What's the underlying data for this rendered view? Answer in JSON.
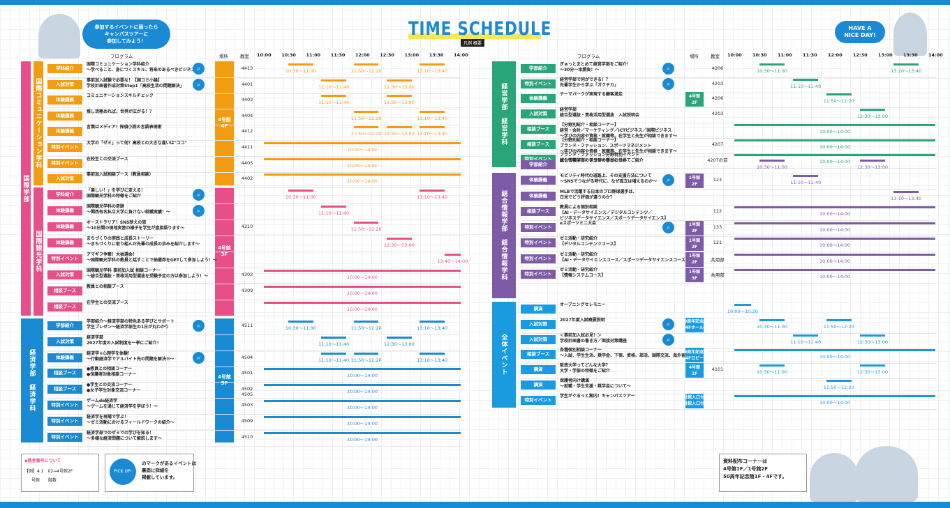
{
  "title": "TIME SCHEDULE",
  "legend_label": "凡例 概要",
  "bubble_left": "参加するイベントに困ったら\nキャンパスツアーに\n参加してみよう！",
  "bubble_right": "HAVE A\nNICE DAY!",
  "headers": {
    "program": "プログラム",
    "place": "場所",
    "room": "教室"
  },
  "times": [
    "10:00",
    "10:30",
    "11:00",
    "11:30",
    "12:00",
    "12:30",
    "13:00",
    "13:30",
    "14:00"
  ],
  "colors": {
    "orange": "#f39c12",
    "pink": "#e84e87",
    "blue": "#1a8ad4",
    "green": "#2aa57a",
    "purple": "#7d5ba6",
    "sky": "#1a9be0"
  },
  "left": {
    "faculties": [
      {
        "label": "国際学部",
        "color": "#e84e87"
      },
      {
        "label": "経済学部　経済学科",
        "color": "#1a8ad4"
      }
    ],
    "depts": [
      {
        "label": "国際コミュニケーション学科",
        "color": "#f39c12"
      },
      {
        "label": "国際観光学科",
        "color": "#e84e87"
      }
    ],
    "buildings": [
      {
        "label": "4号館\n4F",
        "color": "#f39c12"
      },
      {
        "label": "4号館\n3F",
        "color": "#e84e87"
      },
      {
        "label": "4号館\n5F",
        "color": "#1a8ad4"
      }
    ],
    "rows": [
      {
        "cat": "学科紹介",
        "prog": "国際コミュニケーション学科紹介\n～学べること、身につくスキル、将来のあるべきビジネス～",
        "pk": true,
        "room": "4413",
        "bars": [
          [
            "10:30～11:00",
            10.5,
            11
          ],
          [
            "11:50～12:20",
            11.83,
            12.33
          ],
          [
            "13:10～13:40",
            13.17,
            13.67
          ]
        ]
      },
      {
        "cat": "入試対策",
        "prog": "事前加入試験で必要な！【国コミ小論】\n学校計画書作成対策Step1「高校生活の問題解決」",
        "pk": true,
        "room": "4401",
        "bars": [
          [
            "11:10～11:40",
            11.17,
            11.67
          ],
          [
            "12:30～13:00",
            12.5,
            13
          ]
        ]
      },
      {
        "cat": "体験講義",
        "prog": "コミュニケーションスキルチェック",
        "pk": false,
        "room": "4403",
        "bars": [
          [
            "11:10～11:40",
            11.17,
            11.67
          ],
          [
            "12:30～13:00",
            12.5,
            13
          ]
        ]
      },
      {
        "cat": "体験講義",
        "prog": "推し活極めれば、世界が広がる！？",
        "pk": false,
        "room": "4404",
        "bars": [
          [
            "11:50～12:20",
            11.83,
            12.33
          ],
          [
            "13:10～13:40",
            13.17,
            13.67
          ]
        ]
      },
      {
        "cat": "体験講義",
        "prog": "言葉はメディア！探偵小説の言語表現術",
        "pk": false,
        "room": "4412",
        "bars": [
          [
            "11:50～12:20",
            11.83,
            12.33
          ],
          [
            "12:30～13:00",
            12.5,
            13
          ],
          [
            "13:10～13:40",
            13.17,
            13.67
          ]
        ]
      },
      {
        "cat": "特別イベント",
        "prog": "大学の「ゼミ」って何？高校との大きな違いは\"ココ\"",
        "pk": false,
        "room": "4411",
        "bars": [
          [
            "10:00～14:00",
            10,
            14
          ]
        ]
      },
      {
        "cat": "特別イベント",
        "prog": "在校生との交流ブース",
        "pk": false,
        "room": "4405",
        "bars": [
          [
            "10:00～14:00",
            10,
            14
          ]
        ]
      },
      {
        "cat": "入試対策",
        "prog": "事前加入試相談ブース（教員相談）",
        "pk": false,
        "room": "4402",
        "bars": [
          [
            "10:00～14:00",
            10,
            14
          ]
        ]
      },
      {
        "cat": "学科紹介",
        "prog": "「楽しい！」を学びに変える！\n国際観光学科の特徴をご紹介",
        "pk": true,
        "room": "",
        "bars": [
          [
            "10:30～11:00",
            10.5,
            11
          ],
          [
            "13:10～13:40",
            13.17,
            13.67
          ]
        ]
      },
      {
        "cat": "体験講義",
        "prog": "国際観光学科の奇跡\n～関西有名私立大学に負けない就職実績！～",
        "pk": true,
        "room": "",
        "bars": [
          [
            "11:10～11:40",
            11.17,
            11.67
          ]
        ]
      },
      {
        "cat": "体験講義",
        "prog": "オーストラリア！SNS映えの旅\n～10日間の現地実習の様子を学生が直接語ります～",
        "pk": false,
        "room": "4310",
        "bars": [
          [
            "11:50～12:20",
            11.83,
            12.33
          ]
        ]
      },
      {
        "cat": "体験講義",
        "prog": "まちづくりの実践と成長ストーリー\n～まちづくりに取り組んだ先輩の成長の歩みを紹介します～",
        "pk": false,
        "room": "",
        "bars": [
          [
            "12:30～13:00",
            12.5,
            13
          ]
        ]
      },
      {
        "cat": "特別イベント",
        "prog": "アマギフ争奪！大抽選会！\n～国際観光学科の教員と話すことで抽選券をGETして参加しよう！～",
        "pk": false,
        "room": "",
        "bars": [
          [
            "13:40～14:00",
            13.67,
            14
          ]
        ]
      },
      {
        "cat": "入試対策",
        "prog": "国際観光学科 事前加入試 相談コーナー\n～総合型選抜・資格活用型選抜を受験予定の方は参加しよう！～",
        "pk": false,
        "room": "4302",
        "bars": [
          [
            "10:00～14:00",
            10,
            14
          ]
        ]
      },
      {
        "cat": "相談ブース",
        "prog": "教員との相談ブース",
        "pk": false,
        "room": "4309",
        "bars": [
          [
            "10:00～14:00",
            10,
            14
          ]
        ]
      },
      {
        "cat": "相談ブース",
        "prog": "在学生との交流ブース",
        "pk": false,
        "room": "",
        "bars": [
          [
            "10:00～14:00",
            10,
            14
          ]
        ]
      },
      {
        "cat": "学部紹介",
        "prog": "学部紹介～経済学部の特色ある学びとサポート\n学生プレゼン～経済学部生の1日が丸わかり",
        "pk": true,
        "room": "4511",
        "bars": [
          [
            "10:30～11:00",
            10.5,
            11
          ],
          [
            "11:50～12:20",
            11.83,
            12.33
          ],
          [
            "13:10～13:40",
            13.17,
            13.67
          ]
        ]
      },
      {
        "cat": "入試対策",
        "prog": "経済学部\n2027年度の入試制度を一挙にご紹介！",
        "pk": false,
        "room": "",
        "bars": [
          [
            "11:10～11:40",
            11.17,
            11.67
          ],
          [
            "12:30～13:00",
            12.5,
            13
          ]
        ]
      },
      {
        "cat": "体験講義",
        "prog": "経済学×心理学を体験！\n～行動経済学でアルバイト先の問題を解決!!～",
        "pk": true,
        "room": "4504",
        "bars": [
          [
            "11:10～11:40",
            11.17,
            11.67
          ],
          [
            "11:50～12:20",
            11.83,
            12.33
          ],
          [
            "13:10～13:40",
            13.17,
            13.67
          ]
        ]
      },
      {
        "cat": "相談ブース",
        "prog": "●教員との相談コーナー\n●保護者対象相談コーナー",
        "pk": false,
        "room": "4501",
        "bars": [
          [
            "10:00～14:00",
            10,
            14
          ]
        ]
      },
      {
        "cat": "相談ブース",
        "prog": "●学生との交流コーナー\n●女子学生対象交流コーナー",
        "pk": false,
        "room": "4502\n4505",
        "bars": [
          [
            "10:00～14:00",
            10,
            14
          ]
        ]
      },
      {
        "cat": "特別イベント",
        "prog": "ゲームde経済学\n～ゲームを通じて経済学を学ぼう！～",
        "pk": false,
        "room": "4503",
        "bars": [
          [
            "10:00～14:00",
            10,
            14
          ]
        ]
      },
      {
        "cat": "特別イベント",
        "prog": "経済学を現場で学ぶ！\n～ゼミ活動におけるフィールドワークの紹介～",
        "pk": false,
        "room": "4509",
        "bars": [
          [
            "10:00～14:00",
            10,
            14
          ]
        ]
      },
      {
        "cat": "特別イベント",
        "prog": "経済学部でのゼミでの学びを知る！\n～多様な経済問題について解説します～",
        "pk": false,
        "room": "4510",
        "bars": [
          [
            "10:00～14:00",
            10,
            14
          ]
        ]
      }
    ]
  },
  "right": {
    "faculties": [
      {
        "label": "経営学部　経営学科",
        "color": "#2aa57a"
      },
      {
        "label": "総合情報学部　総合情報学科",
        "color": "#7d5ba6"
      },
      {
        "label": "全体イベント",
        "color": "#1a9be0"
      }
    ],
    "rows": [
      {
        "cat": "学部紹介",
        "prog": "ぎゅっとまとめて経営学部をご紹介！\n～30分一本勝負！～",
        "pk": true,
        "place": "",
        "room": "4206",
        "bars": [
          [
            "10:30～11:00",
            10.5,
            11
          ],
          [
            "13:10～13:40",
            13.17,
            13.67
          ]
        ]
      },
      {
        "cat": "特別イベント",
        "prog": "経営学部で何ができる！？\n先輩学生から学ぶ「ガクチカ」",
        "pk": true,
        "place": "",
        "room": "4203",
        "bars": [
          [
            "11:10～11:40",
            11.17,
            11.67
          ]
        ]
      },
      {
        "cat": "体験講義",
        "prog": "テーマパークが実現する顧客満足",
        "pk": false,
        "place": "4号館\n2F",
        "room": "4206",
        "bars": [
          [
            "11:50～12:20",
            11.83,
            12.33
          ]
        ]
      },
      {
        "cat": "入試対策",
        "prog": "経営学部\n総合型選抜・資格活用型選抜　入試説明会",
        "pk": false,
        "place": "",
        "room": "4203",
        "bars": [
          [
            "12:30～13:00",
            12.5,
            13
          ]
        ]
      },
      {
        "cat": "相談ブース",
        "prog": "【分野別紹介・相談コーナー】\n経営・会計／マーケティング／ICTビジネス／国際ビジネス\n～学びの内容や資格・就職等、在学生と先生が相談できます～",
        "pk": false,
        "place": "",
        "room": "",
        "bars": [
          [
            "10:00～14:00",
            10,
            14
          ]
        ]
      },
      {
        "cat": "相談ブース",
        "prog": "【分野別紹介・相談コーナー】\nブランド・ファッション、スポーツマネジメント\n～学びの内容や資格・就職等、在学生と先生が相談できます～",
        "pk": false,
        "place": "",
        "room": "4207",
        "bars": [
          [
            "10:00～14:00",
            10,
            14
          ]
        ]
      },
      {
        "cat": "特別イベント",
        "prog": "ブランド・ファッション分野特別イベント\n試して学ぼう！ブランド香水の世界",
        "pk": false,
        "place": "",
        "room": "4207の前",
        "bars": [
          [
            "10:00～14:00",
            10,
            14
          ]
        ]
      },
      {
        "cat": "学部紹介",
        "prog": "総合情報学部の各分野の学びについてご紹介",
        "pk": false,
        "place": "",
        "room": "",
        "bars": [
          [
            "10:30～11:00",
            10.5,
            11
          ],
          [
            "12:30～13:00",
            12.5,
            13
          ]
        ]
      },
      {
        "cat": "体験講義",
        "prog": "モビリティ時代の道路上、その支援方法について\n～SNSでつながる時代に、なぜ孤立は増えるのか～",
        "pk": true,
        "place": "1号館\n2F",
        "room": "123",
        "bars": [
          [
            "11:10～11:40",
            11.17,
            11.67
          ]
        ]
      },
      {
        "cat": "体験講義",
        "prog": "MLBで活躍する日本のプロ野球選手は、\n日米でどう評価が違うのか？",
        "pk": false,
        "place": "",
        "room": "",
        "bars": [
          [
            "13:10～13:40",
            13.17,
            13.67
          ]
        ]
      },
      {
        "cat": "相談ブース",
        "prog": "教員による個別相談\n【AI・データサイエンス／デジタルコンテンツ／\nビジネスデータサイエンス／スポーツデータサイエンス】",
        "pk": false,
        "place": "",
        "room": "122",
        "bars": [
          [
            "10:00～14:00",
            10,
            14
          ]
        ]
      },
      {
        "cat": "特別イベント",
        "prog": "eスポーツミニ大会",
        "pk": true,
        "place": "1号館\n3F",
        "room": "133",
        "bars": [
          [
            "10:00～14:00",
            10,
            14
          ]
        ]
      },
      {
        "cat": "特別イベント",
        "prog": "ゼミ活動・研究紹介\n【デジタルコンテンツコース】",
        "pk": false,
        "place": "1号館\n2F",
        "room": "121",
        "bars": [
          [
            "10:00～14:00",
            10,
            14
          ]
        ]
      },
      {
        "cat": "特別イベント",
        "prog": "ゼミ活動・研究紹介\n【AI・データサイエンスコース／スポーツデータサイエンスコース】",
        "pk": false,
        "place": "1号館\n2F",
        "room": "共用部",
        "bars": [
          [
            "10:00～14:00",
            10,
            14
          ]
        ]
      },
      {
        "cat": "特別イベント",
        "prog": "ゼミ活動・研究紹介\n【情報システムコース】",
        "pk": false,
        "place": "1号館\n3F",
        "room": "共用部",
        "bars": [
          [
            "10:00～14:00",
            10,
            14
          ]
        ]
      },
      {
        "cat": "講演",
        "prog": "オープニングセレモニー",
        "pk": false,
        "place": "",
        "room": "",
        "bars": [
          [
            "10:00～10:20",
            10,
            10.33
          ]
        ]
      },
      {
        "cat": "入試対策",
        "prog": "2027年度入試概要説明",
        "pk": true,
        "place": "50周年記念館\n4Fホール",
        "room": "",
        "bars": [
          [
            "10:30～11:00",
            10.5,
            11
          ],
          [
            "11:50～12:20",
            11.83,
            12.33
          ]
        ]
      },
      {
        "cat": "入試対策",
        "prog": "＜事前加入試必見！＞\n学校計画書の書き方／面接対策講座",
        "pk": true,
        "place": "",
        "room": "",
        "bars": [
          [
            "11:10～11:40",
            11.17,
            11.67
          ],
          [
            "12:30～13:00",
            12.5,
            13
          ]
        ]
      },
      {
        "cat": "相談ブース",
        "prog": "各種個別相談コーナー\n～入試、学生生活、奨学金、下宿、資格、部活、国際交流、海外留学～",
        "pk": false,
        "place": "50周年記念館\n4Fロビー",
        "room": "",
        "bars": [
          [
            "10:00～14:00",
            10,
            14
          ]
        ]
      },
      {
        "cat": "講演",
        "prog": "阪南大学ってどんな大学？\n大学・学部の特徴をご紹介",
        "pk": false,
        "place": "4号館\n1F",
        "room": "4101",
        "bars": [
          [
            "10:30～11:00",
            10.5,
            11
          ],
          [
            "12:30～13:00",
            12.5,
            13
          ]
        ]
      },
      {
        "cat": "講演",
        "prog": "保護者向け講演\n～就職・学生支援・奨学金について～",
        "pk": false,
        "place": "",
        "room": "",
        "bars": [
          [
            "11:50～12:20",
            11.83,
            12.33
          ]
        ]
      },
      {
        "cat": "特別イベント",
        "prog": "学生がぐるっと案内！キャンパスツアー",
        "pk": false,
        "place": "1号館入口付近\n4号館入口付近",
        "room": "",
        "bars": [
          [
            "10:00～14:00",
            10,
            14
          ]
        ]
      }
    ]
  },
  "notes": {
    "room_title": "◆教室番号について",
    "room_example": "【例】4 2　02→4号館2F",
    "room_legend": "号館　　階数",
    "pickup_icon": "PICK UP!",
    "pickup_text": "のマークがあるイベントは\n裏面に詳細を\n掲載しています。",
    "materials": "資料配布コーナーは\n4号館1F／1号館2F\n50周年記念館1F・4Fです。"
  }
}
